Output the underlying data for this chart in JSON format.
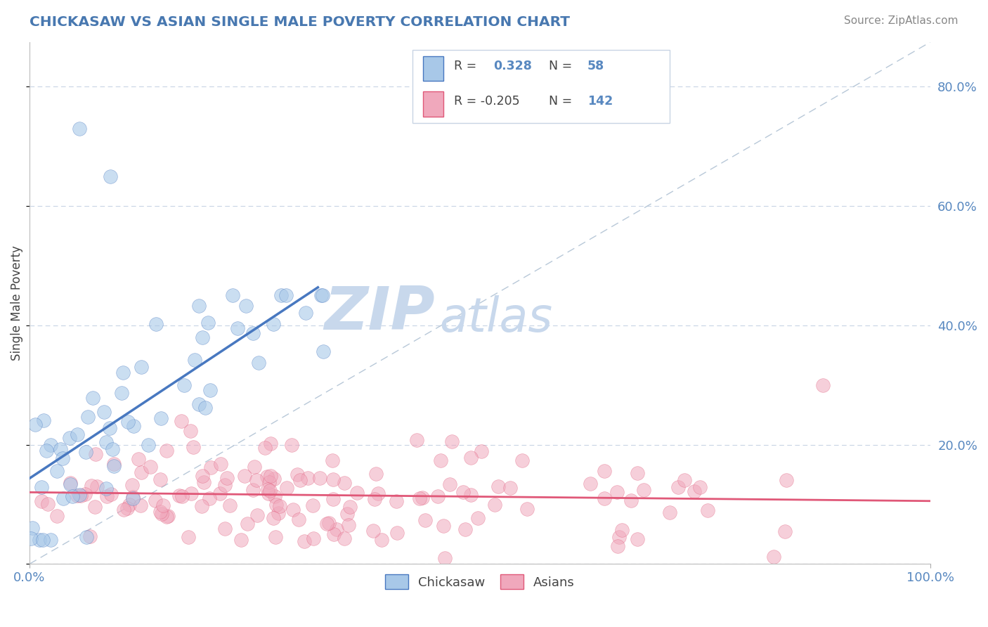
{
  "title": "CHICKASAW VS ASIAN SINGLE MALE POVERTY CORRELATION CHART",
  "source_text": "Source: ZipAtlas.com",
  "ylabel": "Single Male Poverty",
  "watermark_zip": "ZIP",
  "watermark_atlas": "atlas",
  "legend_labels": [
    "Chickasaw",
    "Asians"
  ],
  "blue_color": "#a8c8e8",
  "pink_color": "#f0a8bc",
  "blue_line_color": "#4878c0",
  "pink_line_color": "#e05878",
  "title_color": "#4878b0",
  "axis_label_color": "#5888c0",
  "r_blue": 0.328,
  "n_blue": 58,
  "r_pink": -0.205,
  "n_pink": 142,
  "blue_scatter_seed": 77,
  "pink_scatter_seed": 55,
  "xmin": 0.0,
  "xmax": 1.0,
  "ymin": 0.0,
  "ymax": 0.875,
  "right_yticks": [
    0.0,
    0.2,
    0.4,
    0.6,
    0.8
  ],
  "right_yticklabels": [
    "",
    "20.0%",
    "40.0%",
    "60.0%",
    "80.0%"
  ],
  "grid_color": "#c8d4e4",
  "background_color": "#ffffff",
  "watermark_color": "#c8d8ec",
  "ref_line_color": "#b8c8d8",
  "legend_border_color": "#c8d4e4",
  "text_color": "#444444",
  "source_color": "#888888"
}
